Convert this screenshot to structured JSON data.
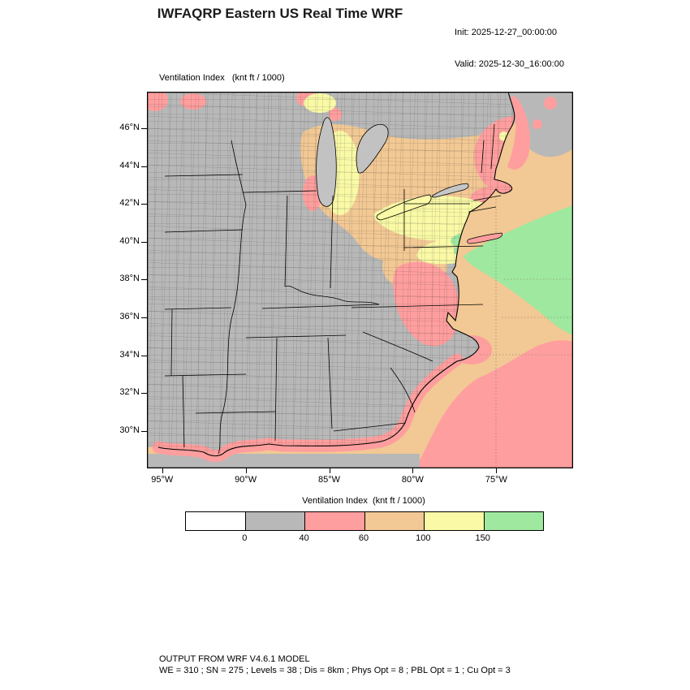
{
  "header": {
    "title": "IWFAQRP Eastern US Real Time WRF",
    "init": "Init: 2025-12-27_00:00:00",
    "valid": "Valid: 2025-12-30_16:00:00"
  },
  "map": {
    "field_label": "Ventilation Index   (knt ft / 1000)",
    "lat_ticks": [
      "46°N",
      "44°N",
      "42°N",
      "40°N",
      "38°N",
      "36°N",
      "34°N",
      "32°N",
      "30°N"
    ],
    "lon_ticks": [
      "95°W",
      "90°W",
      "85°W",
      "80°W",
      "75°W"
    ]
  },
  "colorbar": {
    "title": "Ventilation Index  (knt ft / 1000)",
    "tick_labels": [
      "0",
      "40",
      "60",
      "100",
      "150"
    ],
    "segment_colors": [
      "#ffffff",
      "#b8b8b8",
      "#ff9e9e",
      "#f2c894",
      "#f9f9a6",
      "#9fe89f"
    ]
  },
  "footer": {
    "line1": "OUTPUT FROM WRF V4.6.1 MODEL",
    "line2": "WE = 310 ; SN = 275 ; Levels = 38 ; Dis = 8km ; Phys Opt = 8 ; PBL Opt = 1 ; Cu Opt = 3"
  }
}
